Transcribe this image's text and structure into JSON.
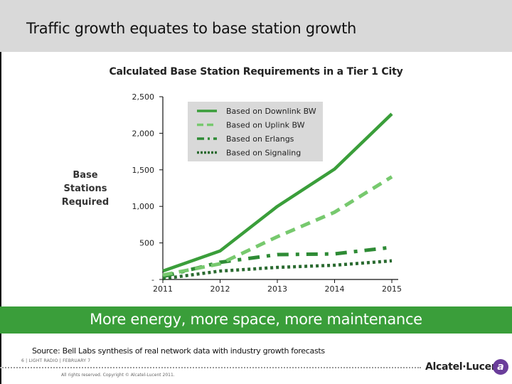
{
  "header": {
    "title": "Traffic growth equates to base station growth"
  },
  "chart": {
    "title": "Calculated Base Station Requirements in a Tier 1 City",
    "ylabel_line1": "Base Stations",
    "ylabel_line2": "Required",
    "yticks": [
      "2,500",
      "2,000",
      "1,500",
      "1,000",
      "500",
      "-"
    ],
    "xticks": [
      "2011",
      "2012",
      "2013",
      "2014",
      "2015"
    ],
    "legend": [
      "Based on Downlink BW",
      "Based on Uplink BW",
      "Based on Erlangs",
      "Based on Signaling"
    ]
  },
  "chart_data": {
    "type": "line",
    "title": "Calculated Base Station Requirements in a Tier 1 City",
    "xlabel": "",
    "ylabel": "Base Stations Required",
    "x": [
      "2011",
      "2012",
      "2013",
      "2014",
      "2015"
    ],
    "ylim": [
      0,
      2500
    ],
    "yticks": [
      0,
      500,
      1000,
      1500,
      2000,
      2500
    ],
    "legend_position": "top-center (inside plot)",
    "grid": false,
    "series": [
      {
        "name": "Based on Downlink BW",
        "style": "solid",
        "color": "#3a9e3a",
        "values": [
          115,
          390,
          1000,
          1510,
          2265
        ]
      },
      {
        "name": "Based on Uplink BW",
        "style": "dashed",
        "color": "#77c96e",
        "values": [
          60,
          215,
          585,
          920,
          1405
        ]
      },
      {
        "name": "Based on Erlangs",
        "style": "dash-dot",
        "color": "#2e8b35",
        "values": [
          40,
          235,
          340,
          350,
          440
        ]
      },
      {
        "name": "Based on Signaling",
        "style": "dotted",
        "color": "#2a6a30",
        "values": [
          10,
          115,
          165,
          195,
          255
        ]
      }
    ]
  },
  "banner": {
    "text": "More energy, more space, more maintenance"
  },
  "footer": {
    "source": "Source:  Bell Labs synthesis of real network data with industry growth forecasts",
    "meta": "6  |  LIGHT RADIO  |  FEBRUARY 7",
    "copyright": "All rights reserved.  Copyright © Alcatel-Lucent 2011.",
    "brand": "Alcatel·Lucent"
  },
  "colors": {
    "header_bg": "#d9d9d9",
    "banner_bg": "#3a9e3a",
    "legend_bg": "#d9d9d9",
    "logo": "#6a3d9a"
  }
}
